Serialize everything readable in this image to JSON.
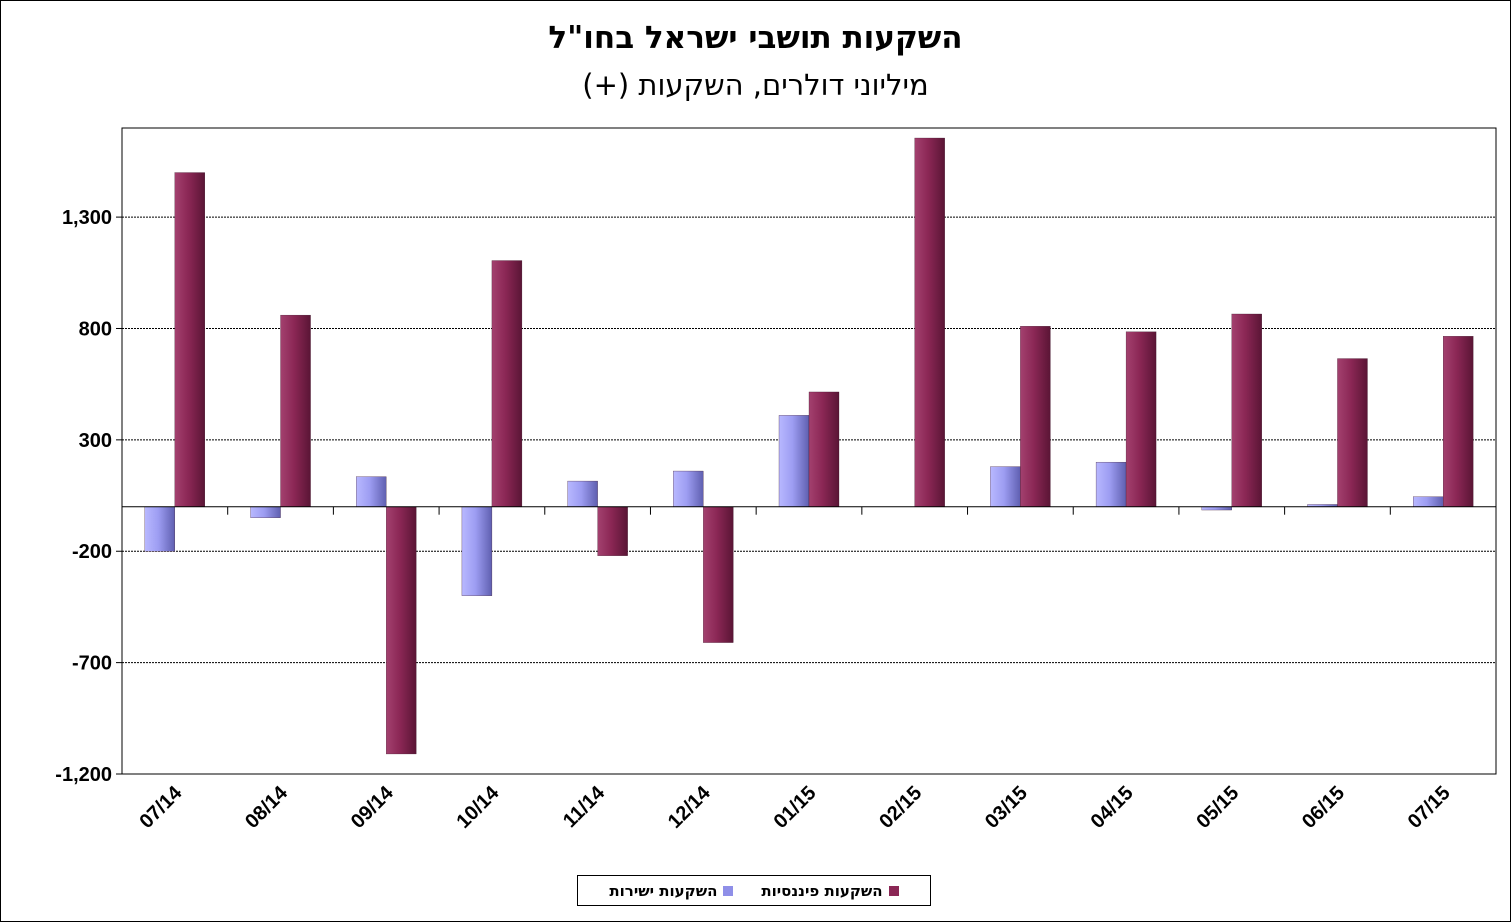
{
  "chart_data": {
    "type": "bar",
    "title": "השקעות תושבי ישראל בחו\"ל",
    "subtitle": "מיליוני דולרים, השקעות (+)",
    "categories": [
      "07/14",
      "08/14",
      "09/14",
      "10/14",
      "11/14",
      "12/14",
      "01/15",
      "02/15",
      "03/15",
      "04/15",
      "05/15",
      "06/15",
      "07/15"
    ],
    "series": [
      {
        "name": "השקעות ישירות",
        "color": "#8f8fe8",
        "values": [
          -200,
          -50,
          135,
          -400,
          115,
          160,
          410,
          0,
          180,
          200,
          -15,
          10,
          45
        ]
      },
      {
        "name": "השקעות פיננסיות",
        "color": "#8b2755",
        "values": [
          1500,
          860,
          -1110,
          1105,
          -220,
          -610,
          515,
          1655,
          810,
          785,
          865,
          665,
          765
        ]
      }
    ],
    "yticks": [
      -1200,
      -700,
      -200,
      300,
      800,
      1300
    ],
    "ytick_labels": [
      "-1,200",
      "-700",
      "-200",
      "300",
      "800",
      "1,300"
    ],
    "ylim": [
      -1200,
      1700
    ],
    "grid": true,
    "legend_position": "bottom"
  },
  "legend": [
    {
      "label": "השקעות פיננסיות",
      "color": "#8b2755"
    },
    {
      "label": "השקעות ישירות",
      "color": "#8f8fe8"
    }
  ]
}
